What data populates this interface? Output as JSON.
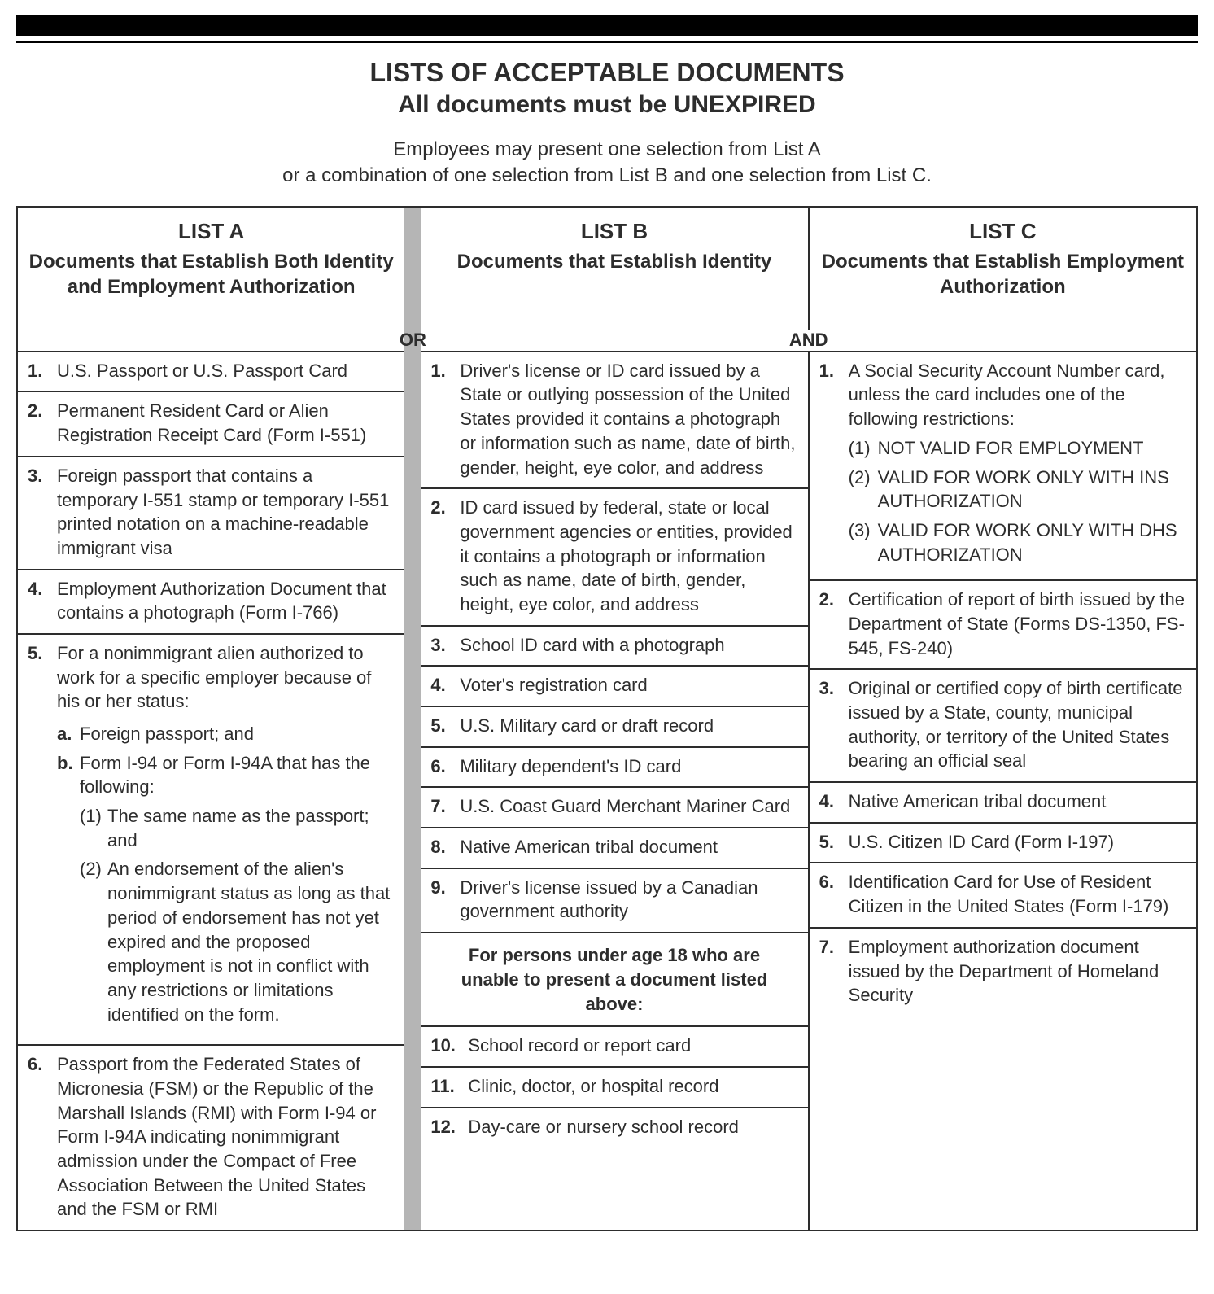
{
  "colors": {
    "text": "#2d2d2d",
    "rule_black": "#000000",
    "sep_gray": "#b5b5b5",
    "bg": "#ffffff"
  },
  "fonts": {
    "family": "Arial",
    "title_size_pt": 32,
    "subtitle_size_pt": 30,
    "body_size_pt": 22
  },
  "title": "LISTS OF ACCEPTABLE DOCUMENTS",
  "subtitle": "All documents must be UNEXPIRED",
  "intro_line1": "Employees may present one selection from List A",
  "intro_line2": "or a combination of one selection from List B and one selection from List C.",
  "connector_ab": "OR",
  "connector_bc": "AND",
  "listA": {
    "label": "LIST A",
    "sub": "Documents that Establish Both Identity and Employment Authorization",
    "items": [
      {
        "n": "1.",
        "text": "U.S. Passport or U.S. Passport Card"
      },
      {
        "n": "2.",
        "text": "Permanent Resident Card or Alien Registration Receipt Card (Form I-551)"
      },
      {
        "n": "3.",
        "text": "Foreign passport that contains a temporary I-551 stamp or temporary I-551 printed notation on a machine-readable immigrant visa"
      },
      {
        "n": "4.",
        "text": "Employment Authorization Document that contains a photograph (Form I-766)"
      },
      {
        "n": "5.",
        "text": "For a nonimmigrant alien authorized to work for a specific employer because of his or her status:",
        "subs": [
          {
            "sn": "a.",
            "stext": "Foreign passport; and"
          },
          {
            "sn": "b.",
            "stext": "Form I-94 or Form I-94A that has the following:",
            "subsubs": [
              {
                "ssn": "(1)",
                "sstext": "The same name as the passport; and"
              },
              {
                "ssn": "(2)",
                "sstext": "An endorsement of the alien's nonimmigrant status as long as that period of endorsement has not yet expired and the proposed employment is not in conflict with any restrictions or limitations identified on the form."
              }
            ]
          }
        ]
      },
      {
        "n": "6.",
        "text": "Passport from the Federated States of Micronesia (FSM) or the Republic of the Marshall Islands (RMI) with Form I-94 or Form I-94A indicating nonimmigrant admission under the Compact of Free Association Between the United States and the FSM or RMI"
      }
    ]
  },
  "listB": {
    "label": "LIST B",
    "sub": "Documents that Establish Identity",
    "items": [
      {
        "n": "1.",
        "text": "Driver's license or ID card issued by a State or outlying possession of the United States provided it contains a photograph or information such as name, date of birth, gender, height, eye color, and address"
      },
      {
        "n": "2.",
        "text": "ID card issued by federal, state or local government agencies or entities, provided it contains a photograph or information such as name, date of birth, gender, height, eye color, and address"
      },
      {
        "n": "3.",
        "text": "School ID card with a photograph"
      },
      {
        "n": "4.",
        "text": "Voter's registration card"
      },
      {
        "n": "5.",
        "text": "U.S. Military card or draft record"
      },
      {
        "n": "6.",
        "text": "Military dependent's ID card"
      },
      {
        "n": "7.",
        "text": "U.S. Coast Guard Merchant Mariner Card"
      },
      {
        "n": "8.",
        "text": "Native American tribal document"
      },
      {
        "n": "9.",
        "text": "Driver's license issued by a Canadian government authority"
      }
    ],
    "note": "For persons under age 18 who are unable to present a document listed above:",
    "items2": [
      {
        "n": "10.",
        "text": "School record or report card"
      },
      {
        "n": "11.",
        "text": "Clinic, doctor, or hospital record"
      },
      {
        "n": "12.",
        "text": "Day-care or nursery school record"
      }
    ]
  },
  "listC": {
    "label": "LIST C",
    "sub": "Documents that Establish Employment Authorization",
    "items": [
      {
        "n": "1.",
        "text": "A Social Security Account Number card, unless the card includes one of the following restrictions:",
        "restrictions": [
          {
            "rn": "(1)",
            "rtext": "NOT VALID FOR EMPLOYMENT"
          },
          {
            "rn": "(2)",
            "rtext": "VALID FOR WORK ONLY WITH INS AUTHORIZATION"
          },
          {
            "rn": "(3)",
            "rtext": "VALID FOR WORK ONLY WITH DHS AUTHORIZATION"
          }
        ]
      },
      {
        "n": "2.",
        "text": "Certification of report of birth issued by the Department of State (Forms DS-1350, FS-545, FS-240)"
      },
      {
        "n": "3.",
        "text": "Original or certified copy of birth certificate issued by a State, county, municipal authority, or territory of the United States bearing an official seal"
      },
      {
        "n": "4.",
        "text": "Native American tribal document"
      },
      {
        "n": "5.",
        "text": "U.S. Citizen ID Card (Form I-197)"
      },
      {
        "n": "6.",
        "text": "Identification Card for Use of Resident Citizen in the United States (Form I-179)"
      },
      {
        "n": "7.",
        "text": "Employment authorization document issued by the Department of Homeland Security"
      }
    ]
  }
}
